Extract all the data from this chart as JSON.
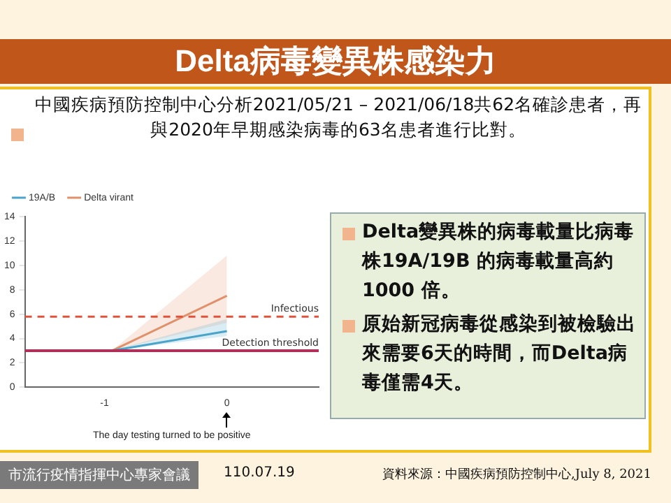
{
  "chart_data": {
    "type": "line",
    "title": "Delta病毒變異株感染力",
    "xlabel": "The day testing turned to be positive",
    "x": [
      -0.94,
      0
    ],
    "series": [
      {
        "name": "19A/B",
        "color": "#4aa3c8",
        "values": [
          3,
          4.6
        ],
        "lower": [
          3,
          4.2
        ],
        "upper": [
          3,
          5.6
        ]
      },
      {
        "name": "Delta virant",
        "color": "#e0906a",
        "values": [
          3,
          7.5
        ],
        "lower": [
          3,
          5.3
        ],
        "upper": [
          3,
          10.8
        ]
      }
    ],
    "xlim": [
      -1.65,
      0.75
    ],
    "xticks": [
      -1,
      0
    ],
    "ylim": [
      0,
      14
    ],
    "yticks": [
      0,
      2,
      4,
      6,
      8,
      10,
      12,
      14
    ],
    "ref_lines": [
      {
        "axis": "y",
        "value": 5.8,
        "label": "Infectious",
        "color": "#e0533a",
        "line_style": "dashed"
      },
      {
        "axis": "y",
        "value": 3,
        "label": "Detection threshold",
        "color": "#b0305a",
        "line_style": "solid"
      }
    ],
    "grid": false,
    "legend": "top left",
    "marker": "none",
    "line_style": "solid",
    "annotations": [
      "中國疾病預防控制中心分析2021/05/21 – 2021/06/18共62名確診患者，再與2020年早期感染病毒的63名患者進行比對。",
      "Delta變異株的病毒載量比病毒株19A/19B 的病毒載量高約 1000 倍。",
      "原始新冠病毒從感染到被檢驗出來需要6天的時間，而Delta病毒僅需4天。",
      "市流行疫情指揮中心專家會議",
      "110.07.19",
      "資料來源：中國疾病預防控制中心,July 8, 2021"
    ]
  }
}
